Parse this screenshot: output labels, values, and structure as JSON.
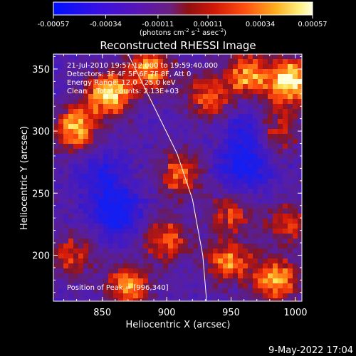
{
  "colorbar": {
    "tick_labels": [
      "-0.00057",
      "-0.00034",
      "-0.00011",
      "0.00011",
      "0.00034",
      "0.00057"
    ],
    "tick_values": [
      -0.00057,
      -0.00034,
      -0.00011,
      0.00011,
      0.00034,
      0.00057
    ],
    "range": [
      -0.00057,
      0.00057
    ],
    "units_prefix": "(photons cm",
    "units_exp1": "-2",
    "units_mid": " s",
    "units_exp2": "-1",
    "units_mid2": " asec",
    "units_exp3": "-2",
    "units_suffix": ")"
  },
  "chart_data": {
    "type": "heatmap",
    "title": "Reconstructed RHESSI Image",
    "xlabel": "Heliocentric X (arcsec)",
    "ylabel": "Heliocentric Y (arcsec)",
    "xlim": [
      812,
      1005
    ],
    "ylim": [
      163,
      362
    ],
    "x_ticks": [
      "850",
      "900",
      "950",
      "1000"
    ],
    "x_tick_values": [
      850,
      900,
      950,
      1000
    ],
    "y_ticks": [
      "200",
      "250",
      "300",
      "350"
    ],
    "y_tick_values": [
      200,
      250,
      300,
      350
    ],
    "limb_curve": [
      [
        870,
        362
      ],
      [
        890,
        320
      ],
      [
        908,
        282
      ],
      [
        920,
        245
      ],
      [
        928,
        200
      ],
      [
        931,
        163
      ]
    ],
    "sources": [
      {
        "x": 830,
        "y": 302,
        "intensity": 0.8
      },
      {
        "x": 855,
        "y": 330,
        "intensity": 0.9
      },
      {
        "x": 887,
        "y": 350,
        "intensity": 0.75
      },
      {
        "x": 932,
        "y": 328,
        "intensity": 0.6
      },
      {
        "x": 963,
        "y": 345,
        "intensity": 0.7
      },
      {
        "x": 996,
        "y": 340,
        "intensity": 1.0
      },
      {
        "x": 985,
        "y": 300,
        "intensity": 0.55
      },
      {
        "x": 910,
        "y": 265,
        "intensity": 0.6
      },
      {
        "x": 900,
        "y": 212,
        "intensity": 0.6
      },
      {
        "x": 950,
        "y": 235,
        "intensity": 0.5
      },
      {
        "x": 948,
        "y": 195,
        "intensity": 0.7
      },
      {
        "x": 995,
        "y": 225,
        "intensity": 0.5
      },
      {
        "x": 985,
        "y": 180,
        "intensity": 0.8
      },
      {
        "x": 870,
        "y": 175,
        "intensity": 0.7
      },
      {
        "x": 825,
        "y": 200,
        "intensity": 0.5
      }
    ],
    "negative_regions": [
      {
        "x": 860,
        "y": 235,
        "strength": 0.9
      },
      {
        "x": 960,
        "y": 270,
        "strength": 0.85
      },
      {
        "x": 965,
        "y": 300,
        "strength": 0.6
      },
      {
        "x": 850,
        "y": 265,
        "strength": 0.5
      }
    ]
  },
  "annotations": {
    "line1": "21-Jul-2010 19:57:12.000 to 19:59:40.000",
    "line2": "Detectors: 3F 4F 5F 6F 7F 8F, Att 0",
    "line3": "Energy Range: 12.0 - 25.0 keV",
    "line4": "Clean    Total counts: 2.13E+03",
    "peak": "Position of Peak = [996,340]"
  },
  "footer": {
    "date": "9-May-2022 17:04"
  }
}
